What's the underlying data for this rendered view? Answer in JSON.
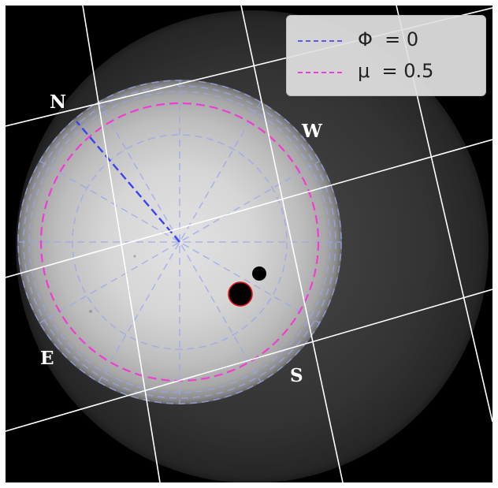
{
  "legend": {
    "items": [
      {
        "symbol": "Φ",
        "text": "= 0",
        "color": "#5a5ae6"
      },
      {
        "symbol": "μ",
        "text": "= 0.5",
        "color": "#f03cd2"
      }
    ]
  },
  "cardinal": {
    "north": "N",
    "west": "W",
    "south": "S",
    "east": "E"
  },
  "colors": {
    "background": "#000000",
    "grid": "#ffffff",
    "latitude_guides": "#9aa6ee",
    "zero_meridian": "#3a44ee",
    "mu_contour": "#f03cd2",
    "spot_outline": "#e01010"
  },
  "icons": [
    "sun-disk",
    "sunspot",
    "transiting-planet"
  ]
}
